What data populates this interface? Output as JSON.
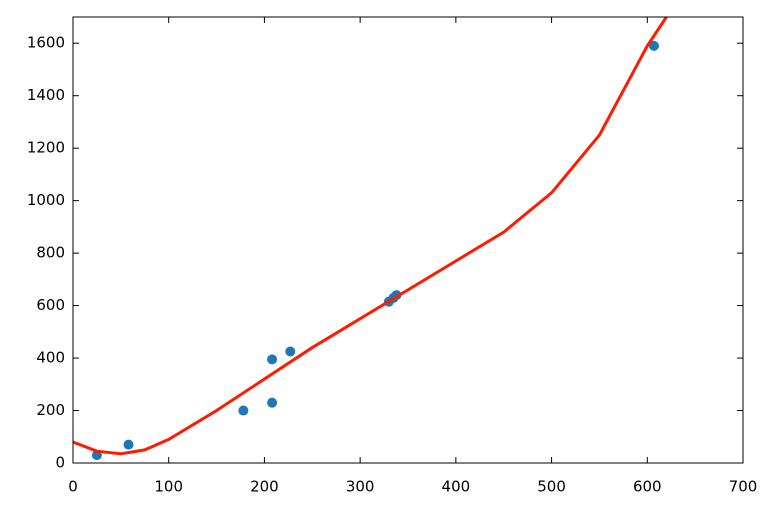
{
  "chart_data": {
    "type": "scatter",
    "xlim": [
      0,
      700
    ],
    "xticks": [
      0,
      100,
      200,
      300,
      400,
      500,
      600,
      700
    ],
    "ylim": [
      0,
      1700
    ],
    "yticks": [
      0,
      200,
      400,
      600,
      800,
      1000,
      1200,
      1400,
      1600
    ],
    "series": [
      {
        "type": "scatter",
        "color": "#1f77b4",
        "x": [
          25,
          58,
          178,
          208,
          208,
          227,
          330,
          335,
          338,
          607
        ],
        "values": [
          30,
          70,
          200,
          230,
          395,
          425,
          615,
          630,
          640,
          1590
        ]
      },
      {
        "type": "line",
        "color": "#ff1a00",
        "x": [
          0,
          25,
          50,
          75,
          100,
          150,
          200,
          250,
          300,
          350,
          400,
          450,
          500,
          550,
          600,
          620
        ],
        "values": [
          80,
          45,
          35,
          50,
          90,
          200,
          320,
          440,
          550,
          660,
          770,
          880,
          1030,
          1250,
          1590,
          1700
        ]
      }
    ]
  }
}
